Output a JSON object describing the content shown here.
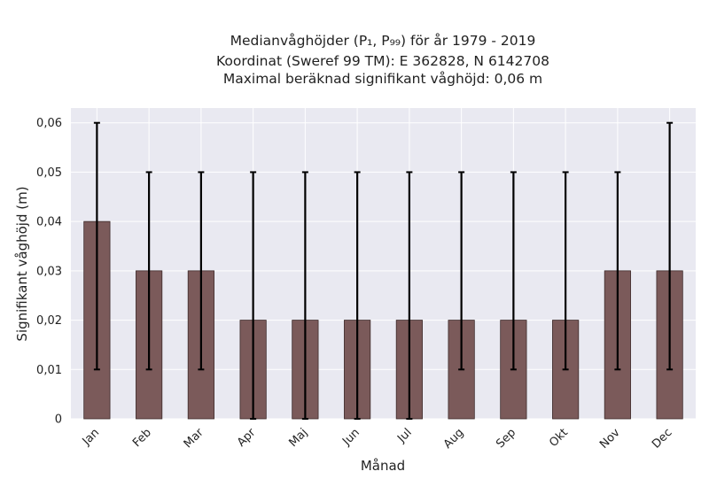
{
  "chart_data": {
    "type": "bar",
    "title_lines": [
      "Medianvåghöjder (P₁, P₉₉) för år 1979 - 2019",
      "Koordinat (Sweref 99 TM): E 362828, N 6142708",
      "Maximal beräknad signifikant våghöjd: 0,06 m"
    ],
    "xlabel": "Månad",
    "ylabel": "Signifikant våghöjd (m)",
    "categories": [
      "Jan",
      "Feb",
      "Mar",
      "Apr",
      "Maj",
      "Jun",
      "Jul",
      "Aug",
      "Sep",
      "Okt",
      "Nov",
      "Dec"
    ],
    "series": [
      {
        "values": [
          0.04,
          0.03,
          0.03,
          0.02,
          0.02,
          0.02,
          0.02,
          0.02,
          0.02,
          0.02,
          0.03,
          0.03
        ],
        "err_low": [
          0.01,
          0.01,
          0.01,
          0.0,
          0.0,
          0.0,
          0.0,
          0.01,
          0.01,
          0.01,
          0.01,
          0.01
        ],
        "err_high": [
          0.06,
          0.05,
          0.05,
          0.05,
          0.05,
          0.05,
          0.05,
          0.05,
          0.05,
          0.05,
          0.05,
          0.06
        ]
      }
    ],
    "ylim": [
      0,
      0.063
    ],
    "yticks": [
      0,
      0.01,
      0.02,
      0.03,
      0.04,
      0.05,
      0.06
    ],
    "ytick_labels": [
      "0",
      "0,01",
      "0,02",
      "0,03",
      "0,04",
      "0,05",
      "0,06"
    ],
    "grid": true,
    "colors": {
      "bar": "#7b5a5a",
      "bar_edge": "#3d2a2a",
      "plot_bg": "#e9e9f1",
      "grid": "#ffffff",
      "errorbar": "#000000"
    }
  }
}
